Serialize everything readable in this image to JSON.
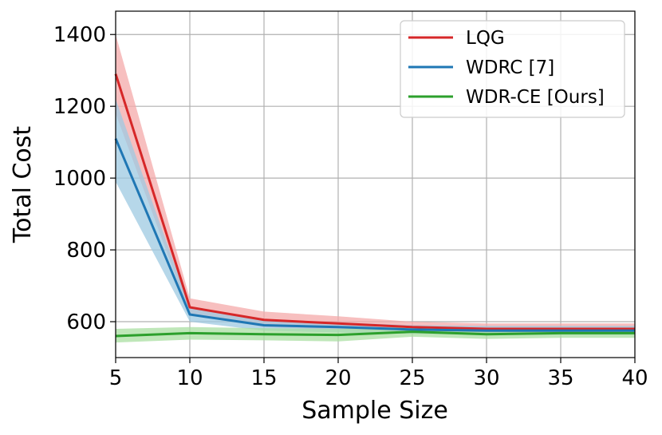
{
  "chart_data": {
    "type": "line",
    "title": "",
    "xlabel": "Sample Size",
    "ylabel": "Total Cost",
    "xlim": [
      5,
      40
    ],
    "ylim": [
      500,
      1465
    ],
    "xticks": [
      5,
      10,
      15,
      20,
      25,
      30,
      35,
      40
    ],
    "yticks": [
      600,
      800,
      1000,
      1200,
      1400
    ],
    "grid": true,
    "legend_position": "top-right",
    "x": [
      5,
      10,
      15,
      20,
      25,
      30,
      35,
      40
    ],
    "series": [
      {
        "name": "LQG",
        "color": "#d62728",
        "band_color": "#f4a9a9",
        "values": [
          1290,
          640,
          605,
          595,
          585,
          580,
          580,
          580
        ],
        "upper": [
          1400,
          665,
          628,
          615,
          600,
          595,
          595,
          595
        ],
        "lower": [
          1180,
          620,
          585,
          578,
          572,
          568,
          568,
          568
        ]
      },
      {
        "name": "WDRC [7]",
        "color": "#1f77b4",
        "band_color": "#9ecae1",
        "values": [
          1110,
          620,
          590,
          585,
          578,
          575,
          575,
          575
        ],
        "upper": [
          1220,
          640,
          605,
          598,
          590,
          588,
          588,
          588
        ],
        "lower": [
          990,
          600,
          575,
          570,
          566,
          563,
          563,
          563
        ]
      },
      {
        "name": "WDR-CE [Ours]",
        "color": "#2ca02c",
        "band_color": "#a9dfa1",
        "values": [
          560,
          568,
          565,
          563,
          572,
          565,
          568,
          568
        ],
        "upper": [
          580,
          585,
          582,
          580,
          585,
          578,
          580,
          580
        ],
        "lower": [
          542,
          550,
          548,
          545,
          558,
          552,
          555,
          555
        ]
      }
    ]
  }
}
